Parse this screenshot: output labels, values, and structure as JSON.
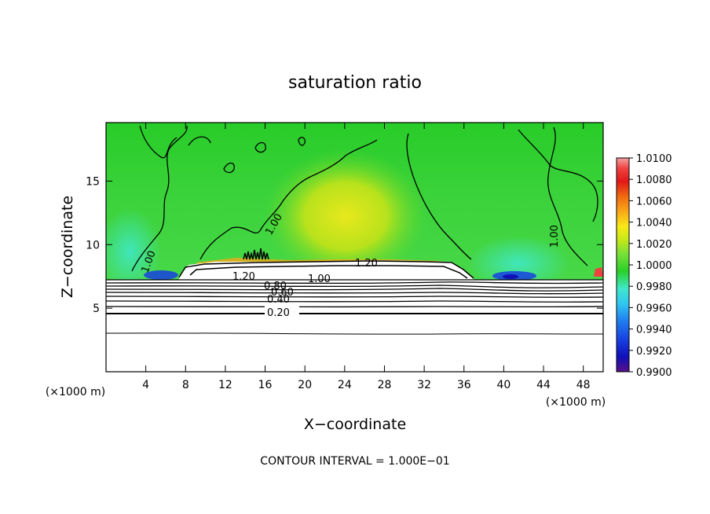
{
  "chart_data": {
    "type": "heatmap",
    "title": "saturation ratio",
    "xlabel": "X−coordinate",
    "ylabel": "Z−coordinate",
    "x_unit": "(×1000 m)",
    "y_unit": "(×1000 m)",
    "xlim": [
      0,
      50
    ],
    "ylim": [
      0,
      19.6
    ],
    "x_ticks": [
      "4",
      "8",
      "12",
      "16",
      "20",
      "24",
      "28",
      "32",
      "36",
      "40",
      "44",
      "48"
    ],
    "y_ticks": [
      "5",
      "10",
      "15"
    ],
    "x_tick_values": [
      4,
      8,
      12,
      16,
      20,
      24,
      28,
      32,
      36,
      40,
      44,
      48
    ],
    "y_tick_values": [
      5,
      10,
      15
    ],
    "footer": "CONTOUR INTERVAL = 1.000E−01",
    "colorbar": {
      "min": 0.99,
      "max": 1.01,
      "labels": [
        "1.0100",
        "1.0080",
        "1.0060",
        "1.0040",
        "1.0020",
        "1.0000",
        "0.9980",
        "0.9960",
        "0.9940",
        "0.9920",
        "0.9900"
      ],
      "colors": [
        "#f4a0a0",
        "#f04040",
        "#e01818",
        "#f06a10",
        "#f8a818",
        "#f8e818",
        "#c8e818",
        "#78e038",
        "#28d028",
        "#40e880",
        "#40e8c8",
        "#30c8f0",
        "#2080f0",
        "#1840e0",
        "#1010b8",
        "#6010a8",
        "#5a1088"
      ]
    },
    "contour_labels": [
      "1.00",
      "1.00",
      "1.00",
      "1.20",
      "1.20",
      "0.80",
      "1.00",
      "0.60",
      "0.40",
      "0.20"
    ],
    "contour_levels_below_cloud": [
      0.1,
      0.2,
      0.3,
      0.4,
      0.5,
      0.6,
      0.7,
      0.8,
      0.9,
      1.0
    ],
    "cloud_top_km": 8.8,
    "cloud_base_km": 7.5
  }
}
